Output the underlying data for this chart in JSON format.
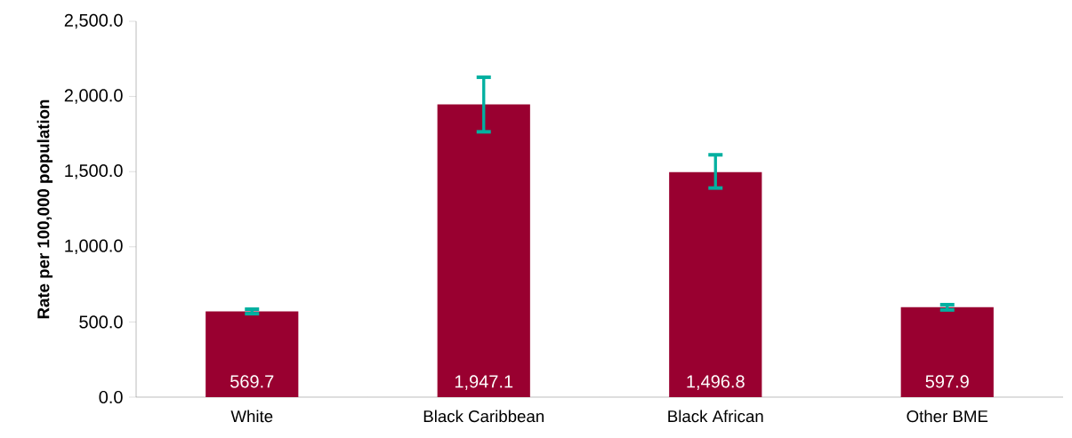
{
  "chart_data": {
    "type": "bar",
    "ylabel": "Rate per 100,000 population",
    "categories": [
      "White",
      "Black Caribbean",
      "Black African",
      "Other BME"
    ],
    "values": [
      569.7,
      1947.1,
      1496.8,
      597.9
    ],
    "value_labels": [
      "569.7",
      "1,947.1",
      "1,496.8",
      "597.9"
    ],
    "errors": [
      [
        555,
        585
      ],
      [
        1765,
        2128
      ],
      [
        1391,
        1612
      ],
      [
        580,
        615
      ]
    ],
    "color": "#990030",
    "ylim": [
      0,
      2500
    ],
    "yticks": [
      {
        "value": 0,
        "label": "0.0"
      },
      {
        "value": 500,
        "label": "500.0"
      },
      {
        "value": 1000,
        "label": "1,000.0"
      },
      {
        "value": 1500,
        "label": "1,500.0"
      },
      {
        "value": 2000,
        "label": "2,000.0"
      },
      {
        "value": 2500,
        "label": "2,500.0"
      }
    ],
    "grid": false
  }
}
